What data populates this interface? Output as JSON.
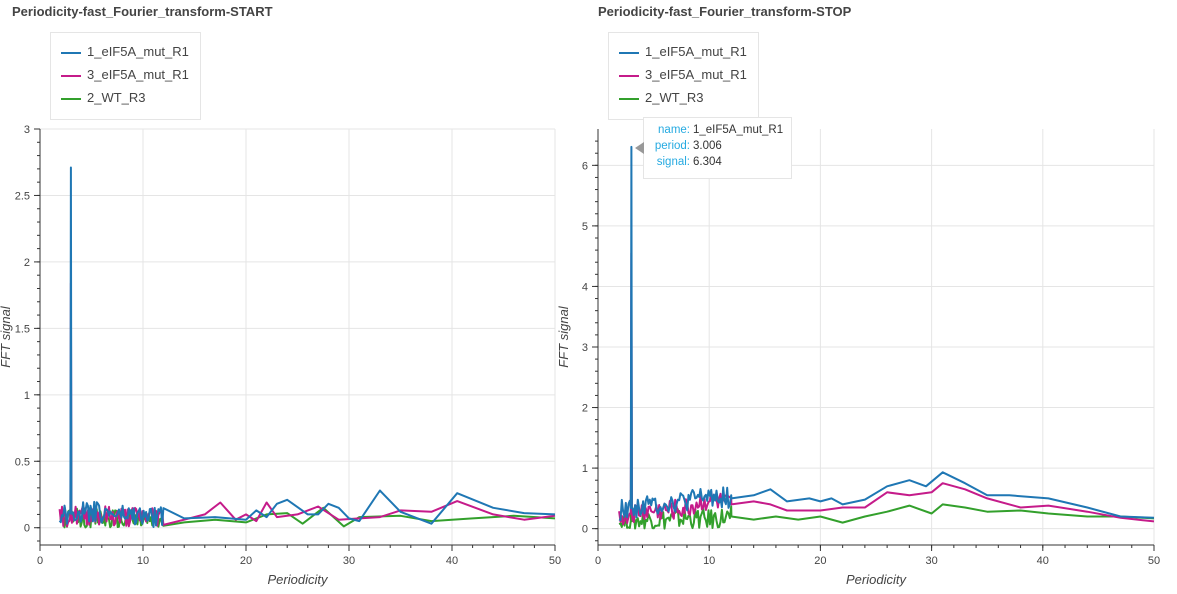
{
  "colors": {
    "blue": "#1f77b4",
    "magenta": "#c51b8a",
    "green": "#33a02c",
    "tooltip_key": "#26aae1"
  },
  "chart_data": [
    {
      "type": "line",
      "title": "Periodicity-fast_Fourier_transform-START",
      "xlabel": "Periodicity",
      "ylabel": "FFT signal",
      "xlim": [
        0,
        50
      ],
      "ylim": [
        -0.13,
        3.0
      ],
      "x_ticks": [
        "0",
        "10",
        "20",
        "30",
        "40",
        "50"
      ],
      "y_ticks": [
        "0",
        "0.5",
        "1",
        "1.5",
        "2",
        "2.5",
        "3"
      ],
      "grid": true,
      "legend_position": "top-left",
      "series": [
        {
          "name": "1_eIF5A_mut_R1",
          "color": "#1f77b4",
          "peak_x": 3.0,
          "peak_y": 2.71,
          "x": [
            2,
            5,
            8,
            11,
            14,
            17,
            20,
            21,
            22,
            23,
            24,
            26,
            27,
            28,
            29,
            30,
            31,
            33,
            35,
            38,
            40.5,
            44,
            47,
            50
          ],
          "y": [
            0.1,
            0.12,
            0.1,
            0.08,
            0.07,
            0.08,
            0.06,
            0.13,
            0.08,
            0.18,
            0.21,
            0.1,
            0.1,
            0.18,
            0.15,
            0.07,
            0.05,
            0.28,
            0.12,
            0.03,
            0.26,
            0.15,
            0.11,
            0.1
          ]
        },
        {
          "name": "3_eIF5A_mut_R1",
          "color": "#c51b8a",
          "peak_x": 3.0,
          "peak_y": 1.84,
          "x": [
            2,
            5,
            8,
            11,
            14,
            16,
            17.5,
            19,
            20,
            21,
            22,
            23,
            25,
            27,
            29,
            31,
            33,
            35,
            38,
            40.5,
            44,
            47,
            50
          ],
          "y": [
            0.08,
            0.1,
            0.08,
            0.09,
            0.06,
            0.1,
            0.19,
            0.06,
            0.1,
            0.05,
            0.19,
            0.08,
            0.1,
            0.16,
            0.06,
            0.07,
            0.08,
            0.13,
            0.12,
            0.2,
            0.1,
            0.06,
            0.09
          ]
        },
        {
          "name": "2_WT_R3",
          "color": "#33a02c",
          "peak_x": 3.0,
          "peak_y": 1.12,
          "x": [
            2,
            5,
            8,
            11,
            14,
            17,
            20,
            22,
            24,
            25.5,
            27.5,
            29.5,
            31,
            35,
            38,
            42,
            46,
            50
          ],
          "y": [
            0.06,
            0.07,
            0.06,
            0.05,
            0.04,
            0.06,
            0.04,
            0.1,
            0.11,
            0.03,
            0.15,
            0.01,
            0.08,
            0.09,
            0.05,
            0.07,
            0.09,
            0.07
          ]
        }
      ]
    },
    {
      "type": "line",
      "title": "Periodicity-fast_Fourier_transform-STOP",
      "xlabel": "Periodicity",
      "ylabel": "FFT signal",
      "xlim": [
        0,
        50
      ],
      "ylim": [
        -0.27,
        6.6
      ],
      "x_ticks": [
        "0",
        "10",
        "20",
        "30",
        "40",
        "50"
      ],
      "y_ticks": [
        "0",
        "1",
        "2",
        "3",
        "4",
        "5",
        "6"
      ],
      "grid": true,
      "legend_position": "top-left",
      "series": [
        {
          "name": "1_eIF5A_mut_R1",
          "color": "#1f77b4",
          "peak_x": 3.0,
          "peak_y": 6.304,
          "x": [
            2,
            4,
            6,
            8,
            10,
            12,
            14,
            15.5,
            17,
            19,
            20,
            21,
            22,
            24,
            26,
            28,
            29.5,
            31,
            33,
            35,
            37,
            40.5,
            44,
            47,
            50
          ],
          "y": [
            0.3,
            0.38,
            0.42,
            0.45,
            0.55,
            0.5,
            0.55,
            0.65,
            0.45,
            0.5,
            0.45,
            0.5,
            0.4,
            0.48,
            0.7,
            0.8,
            0.7,
            0.93,
            0.75,
            0.55,
            0.55,
            0.5,
            0.35,
            0.2,
            0.18
          ]
        },
        {
          "name": "3_eIF5A_mut_R1",
          "color": "#c51b8a",
          "peak_x": 3.0,
          "peak_y": 4.55,
          "x": [
            2,
            4,
            6,
            8,
            10,
            12,
            14,
            15.5,
            17,
            19,
            20,
            22,
            24,
            26,
            28,
            30,
            31,
            33,
            35,
            38,
            40.5,
            44,
            47,
            50
          ],
          "y": [
            0.2,
            0.3,
            0.32,
            0.35,
            0.5,
            0.4,
            0.45,
            0.4,
            0.3,
            0.3,
            0.3,
            0.35,
            0.35,
            0.6,
            0.55,
            0.6,
            0.75,
            0.65,
            0.5,
            0.35,
            0.38,
            0.28,
            0.18,
            0.12
          ]
        },
        {
          "name": "2_WT_R3",
          "color": "#33a02c",
          "peak_x": 3.0,
          "peak_y": 2.95,
          "x": [
            2,
            4,
            6,
            8,
            10,
            12,
            14,
            16,
            18,
            20,
            22,
            24,
            26,
            28,
            30,
            31,
            33,
            35,
            38,
            40.5,
            44,
            47,
            50
          ],
          "y": [
            0.1,
            0.15,
            0.15,
            0.18,
            0.15,
            0.2,
            0.15,
            0.2,
            0.15,
            0.2,
            0.1,
            0.2,
            0.28,
            0.38,
            0.25,
            0.4,
            0.35,
            0.28,
            0.3,
            0.25,
            0.2,
            0.2,
            0.17
          ]
        }
      ]
    }
  ],
  "tooltip": {
    "name_key": "name:",
    "name_val": "1_eIF5A_mut_R1",
    "period_key": "period:",
    "period_val": "3.006",
    "signal_key": "signal:",
    "signal_val": "6.304"
  }
}
